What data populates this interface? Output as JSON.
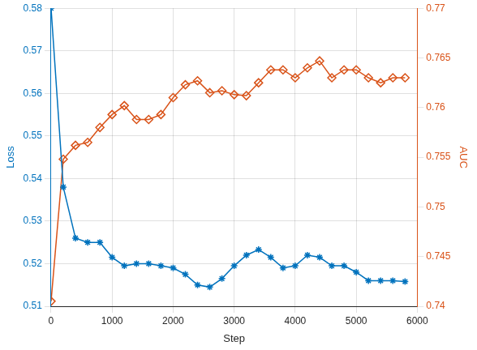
{
  "chart_data": {
    "type": "line",
    "x_label": "Step",
    "y_label": "Loss",
    "y2_label": "AUC",
    "x": [
      0,
      200,
      400,
      600,
      800,
      1000,
      1200,
      1400,
      1600,
      1800,
      2000,
      2200,
      2400,
      2600,
      2800,
      3000,
      3200,
      3400,
      3600,
      3800,
      4000,
      4200,
      4400,
      4600,
      4800,
      5000,
      5200,
      5400,
      5600,
      5800
    ],
    "xlim": [
      0,
      6000
    ],
    "xticks": [
      0,
      1000,
      2000,
      3000,
      4000,
      5000,
      6000
    ],
    "ylim": [
      0.51,
      0.58
    ],
    "yticks": [
      0.51,
      0.52,
      0.53,
      0.54,
      0.55,
      0.56,
      0.57,
      0.58
    ],
    "y2lim": [
      0.74,
      0.77
    ],
    "y2ticks": [
      0.74,
      0.745,
      0.75,
      0.755,
      0.76,
      0.765,
      0.77
    ],
    "grid": true,
    "series": [
      {
        "name": "Loss",
        "color": "#0072bd",
        "marker": "asterisk",
        "line_style": "solid",
        "values": [
          0.58,
          0.538,
          0.526,
          0.525,
          0.525,
          0.5215,
          0.5195,
          0.52,
          0.52,
          0.5195,
          0.519,
          0.5175,
          0.515,
          0.5145,
          0.5165,
          0.5195,
          0.522,
          0.5233,
          0.5215,
          0.519,
          0.5195,
          0.522,
          0.5215,
          0.5195,
          0.5195,
          0.518,
          0.516,
          0.516,
          0.516,
          0.5158
        ]
      },
      {
        "name": "AUC",
        "color": "#d95319",
        "marker": "diamond",
        "line_style": "solid",
        "axis": "y2",
        "values": [
          0.7405,
          0.7548,
          0.7562,
          0.7565,
          0.758,
          0.7593,
          0.7602,
          0.7588,
          0.7588,
          0.7593,
          0.761,
          0.7623,
          0.7627,
          0.7615,
          0.7617,
          0.7613,
          0.7612,
          0.7625,
          0.7638,
          0.7638,
          0.763,
          0.764,
          0.7647,
          0.763,
          0.7638,
          0.7638,
          0.763,
          0.7625,
          0.763,
          0.763
        ]
      }
    ]
  }
}
